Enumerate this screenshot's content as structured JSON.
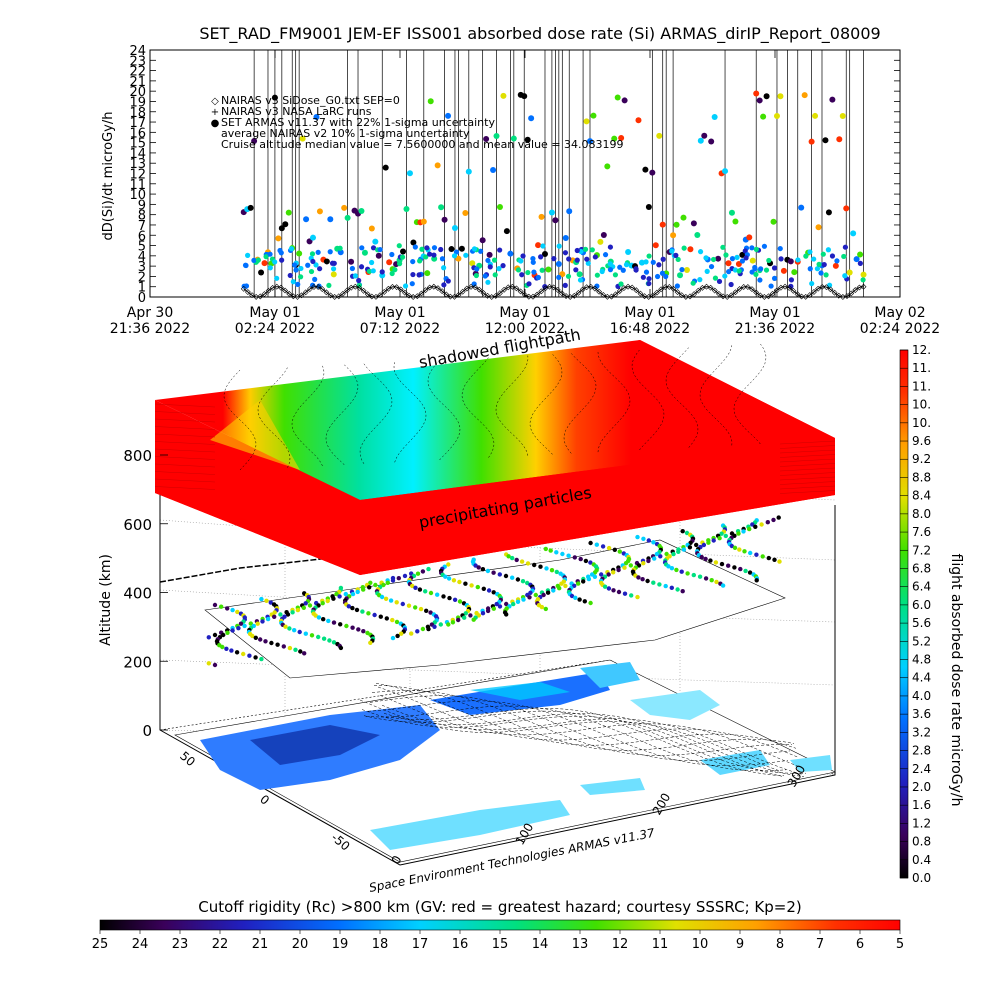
{
  "title": "SET_RAD_FM9001  JEM-EF ISS001 absorbed dose rate (Si) ARMAS_dirIP_Report_08009",
  "chart_data": [
    {
      "type": "line",
      "ylabel": "dD(Si)/dt microGy/h",
      "ylim": [
        0,
        24
      ],
      "y_ticks": [
        "0",
        "1",
        "2",
        "3",
        "4",
        "5",
        "6",
        "7",
        "8",
        "9",
        "10",
        "11",
        "12",
        "13",
        "14",
        "15",
        "16",
        "17",
        "18",
        "19",
        "20",
        "21",
        "22",
        "23",
        "24"
      ],
      "x_ticks": [
        {
          "line1": "Apr 30",
          "line2": "21:36 2022",
          "hours": 0
        },
        {
          "line1": "May 01",
          "line2": "02:24 2022",
          "hours": 4.8
        },
        {
          "line1": "May 01",
          "line2": "07:12 2022",
          "hours": 9.6
        },
        {
          "line1": "May 01",
          "line2": "12:00 2022",
          "hours": 14.4
        },
        {
          "line1": "May 01",
          "line2": "16:48 2022",
          "hours": 19.2
        },
        {
          "line1": "May 01",
          "line2": "21:36 2022",
          "hours": 24.0
        },
        {
          "line1": "May 02",
          "line2": "02:24 2022",
          "hours": 28.8
        }
      ],
      "xlim_hours": [
        0,
        28.8
      ],
      "data_span_hours": [
        3.6,
        27.4
      ],
      "legend": [
        {
          "marker": "◇",
          "text": "NAIRAS v3 SiDose_G0.txt SEP=0"
        },
        {
          "marker": "+",
          "text": "NAIRAS v3 NASA LaRC runs"
        },
        {
          "marker": "●",
          "text": "SET ARMAS v11.37 with 22% 1-sigma uncertainty",
          "color": "#0040ff"
        },
        {
          "marker": "",
          "text": "average NAIRAS v2 10% 1-sigma uncertainty"
        },
        {
          "marker": "",
          "text": "Cruise altitude median value = 7.5600000 and mean value = 34.083199"
        }
      ],
      "series": [
        {
          "name": "NAIRAS v3 SiDose_G0.txt SEP=0",
          "model_description": "diurnal oscillation 0-1",
          "min": 0,
          "max": 1
        },
        {
          "name": "SET ARMAS v11.37",
          "typical_range": [
            1,
            6
          ],
          "spike_max": 24
        }
      ]
    },
    {
      "type": "heatmap",
      "zlabel": "Altitude (km)",
      "z_ticks": [
        "0",
        "200",
        "400",
        "600",
        "800"
      ],
      "lat_ticks": [
        "50",
        "0",
        "-50"
      ],
      "lon_ticks": [
        "0",
        "100",
        "200",
        "300"
      ],
      "annotations": [
        "shadowed flightpath",
        "precipitating particles"
      ],
      "credit": "Space Environment Technologies ARMAS v11.37",
      "colorbar_right": {
        "label": "flight absorbed dose rate microGy/h",
        "ticks": [
          "0.0",
          "0.4",
          "0.8",
          "1.2",
          "1.6",
          "2.0",
          "2.4",
          "2.8",
          "3.2",
          "3.6",
          "4.0",
          "4.4",
          "4.8",
          "5.2",
          "5.6",
          "6.0",
          "6.4",
          "6.8",
          "7.2",
          "7.6",
          "8.0",
          "8.4",
          "8.8",
          "9.2",
          "9.6",
          "10.",
          "10.",
          "11.",
          "11.",
          "12."
        ]
      },
      "colorbar_bottom": {
        "label": "Cutoff rigidity (Rc) >800 km (GV: red = greatest hazard; courtesy SSSRC; Kp=2)",
        "ticks": [
          "25",
          "24",
          "23",
          "22",
          "21",
          "20",
          "19",
          "18",
          "17",
          "16",
          "15",
          "14",
          "13",
          "12",
          "11",
          "10",
          "9",
          "8",
          "7",
          "6",
          "5"
        ]
      }
    }
  ]
}
